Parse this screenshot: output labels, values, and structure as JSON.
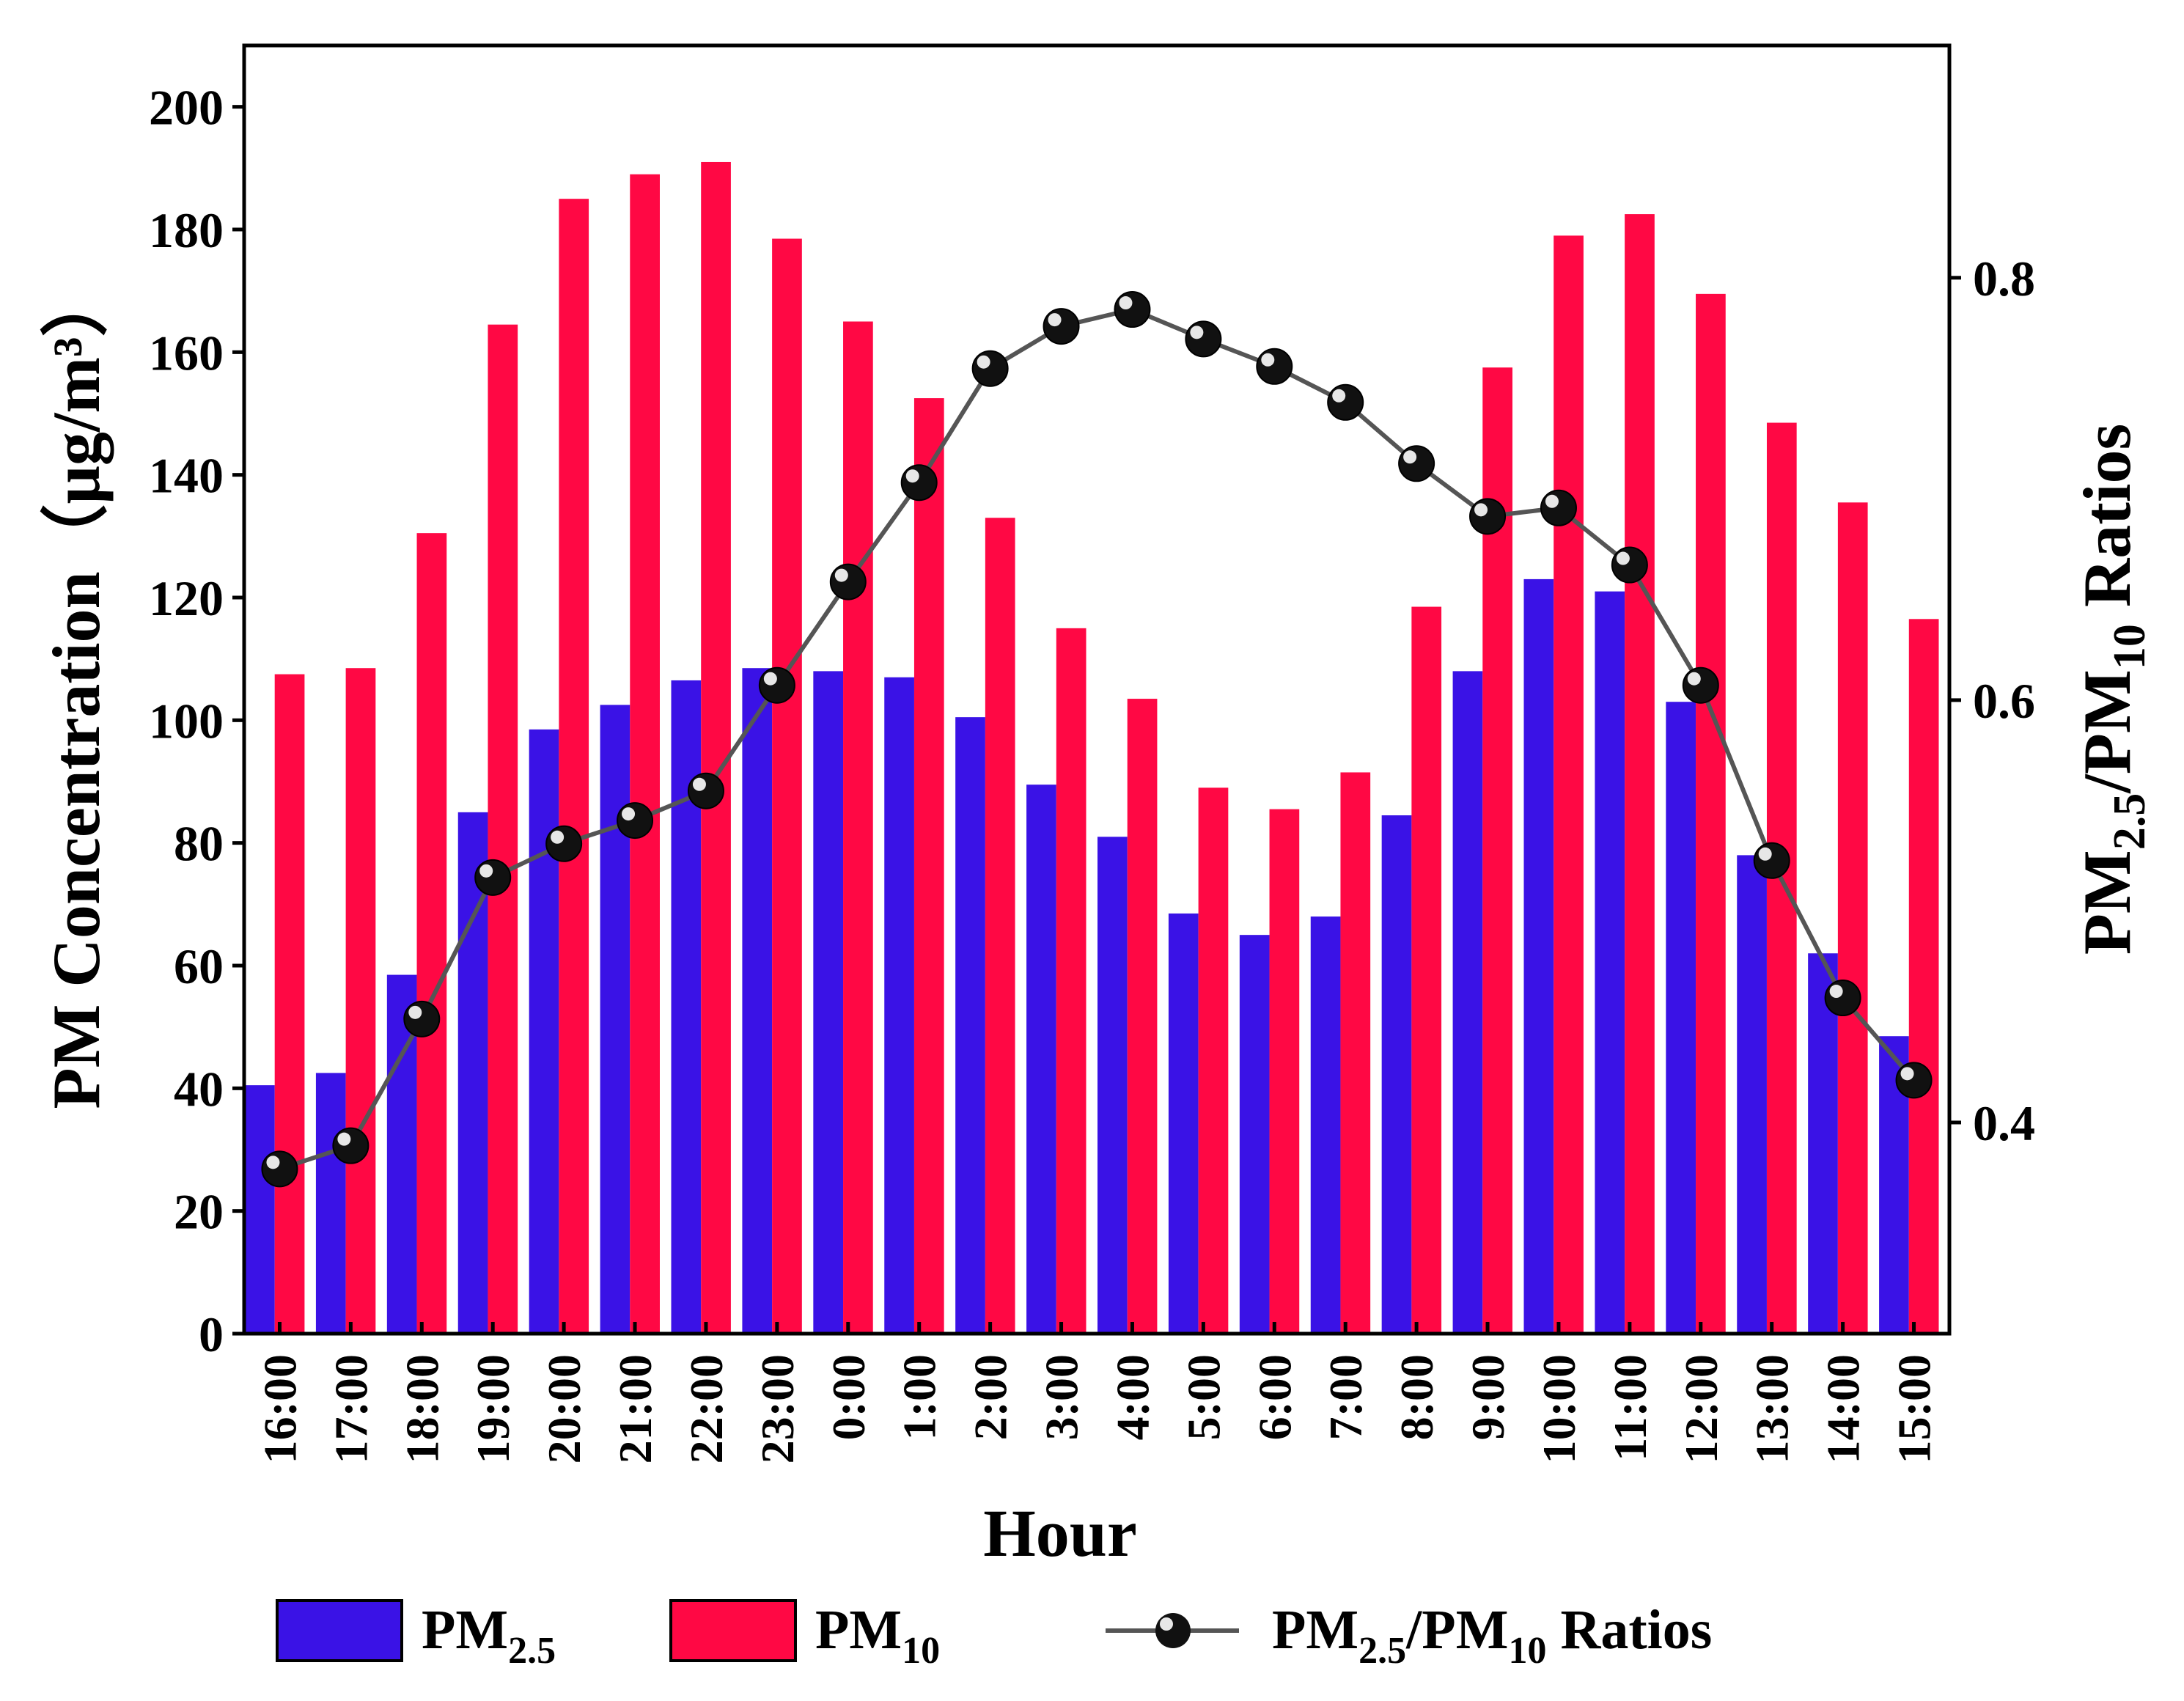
{
  "chart_data": {
    "type": "bar",
    "title": "",
    "xlabel": "Hour",
    "ylabel": "PM Concentration（μg/m³）",
    "y2label": {
      "base": "PM",
      "sub1": "2.5",
      "mid": "/PM",
      "sub2": "10",
      "tail": " Ratios"
    },
    "categories": [
      "16:00",
      "17:00",
      "18:00",
      "19:00",
      "20:00",
      "21:00",
      "22:00",
      "23:00",
      "0:00",
      "1:00",
      "2:00",
      "3:00",
      "4:00",
      "5:00",
      "6:00",
      "7:00",
      "8:00",
      "9:00",
      "10:00",
      "11:00",
      "12:00",
      "13:00",
      "14:00",
      "15:00"
    ],
    "ylim": [
      0,
      210
    ],
    "yticks": [
      0,
      20,
      40,
      60,
      80,
      100,
      120,
      140,
      160,
      180,
      200
    ],
    "y2lim": [
      0.3,
      0.91
    ],
    "y2ticks": [
      0.4,
      0.6,
      0.8
    ],
    "series": [
      {
        "name": "PM2.5",
        "axis": "left",
        "kind": "bar",
        "color": "#3a12e6",
        "values": [
          40.5,
          42.5,
          58.5,
          85,
          98.5,
          102.5,
          106.5,
          108.5,
          108,
          107,
          100.5,
          89.5,
          81,
          68.5,
          65,
          68,
          84.5,
          108,
          123,
          121,
          103,
          78,
          62,
          48.5
        ]
      },
      {
        "name": "PM10",
        "axis": "left",
        "kind": "bar",
        "color": "#ff0844",
        "values": [
          107.5,
          108.5,
          130.5,
          164.5,
          185,
          189,
          191,
          178.5,
          165,
          152.5,
          133,
          115,
          103.5,
          89,
          85.5,
          91.5,
          118.5,
          157.5,
          179,
          182.5,
          169.5,
          148.5,
          135.5,
          116.5
        ]
      },
      {
        "name": "PM2.5/PM10 Ratios",
        "axis": "right",
        "kind": "line",
        "color": "#555555",
        "values": [
          0.378,
          0.389,
          0.449,
          0.516,
          0.532,
          0.543,
          0.557,
          0.607,
          0.656,
          0.703,
          0.757,
          0.777,
          0.785,
          0.771,
          0.758,
          0.741,
          0.712,
          0.687,
          0.691,
          0.664,
          0.607,
          0.524,
          0.459,
          0.42
        ]
      }
    ],
    "legend": {
      "position": "bottom",
      "items": [
        {
          "base": "PM",
          "sub": "2.5",
          "post": "",
          "sub2": "",
          "tail": ""
        },
        {
          "base": "PM",
          "sub": "10",
          "post": "",
          "sub2": "",
          "tail": ""
        },
        {
          "base": "PM",
          "sub": "2.5",
          "post": "/PM",
          "sub2": "10",
          "tail": " Ratios"
        }
      ]
    }
  }
}
